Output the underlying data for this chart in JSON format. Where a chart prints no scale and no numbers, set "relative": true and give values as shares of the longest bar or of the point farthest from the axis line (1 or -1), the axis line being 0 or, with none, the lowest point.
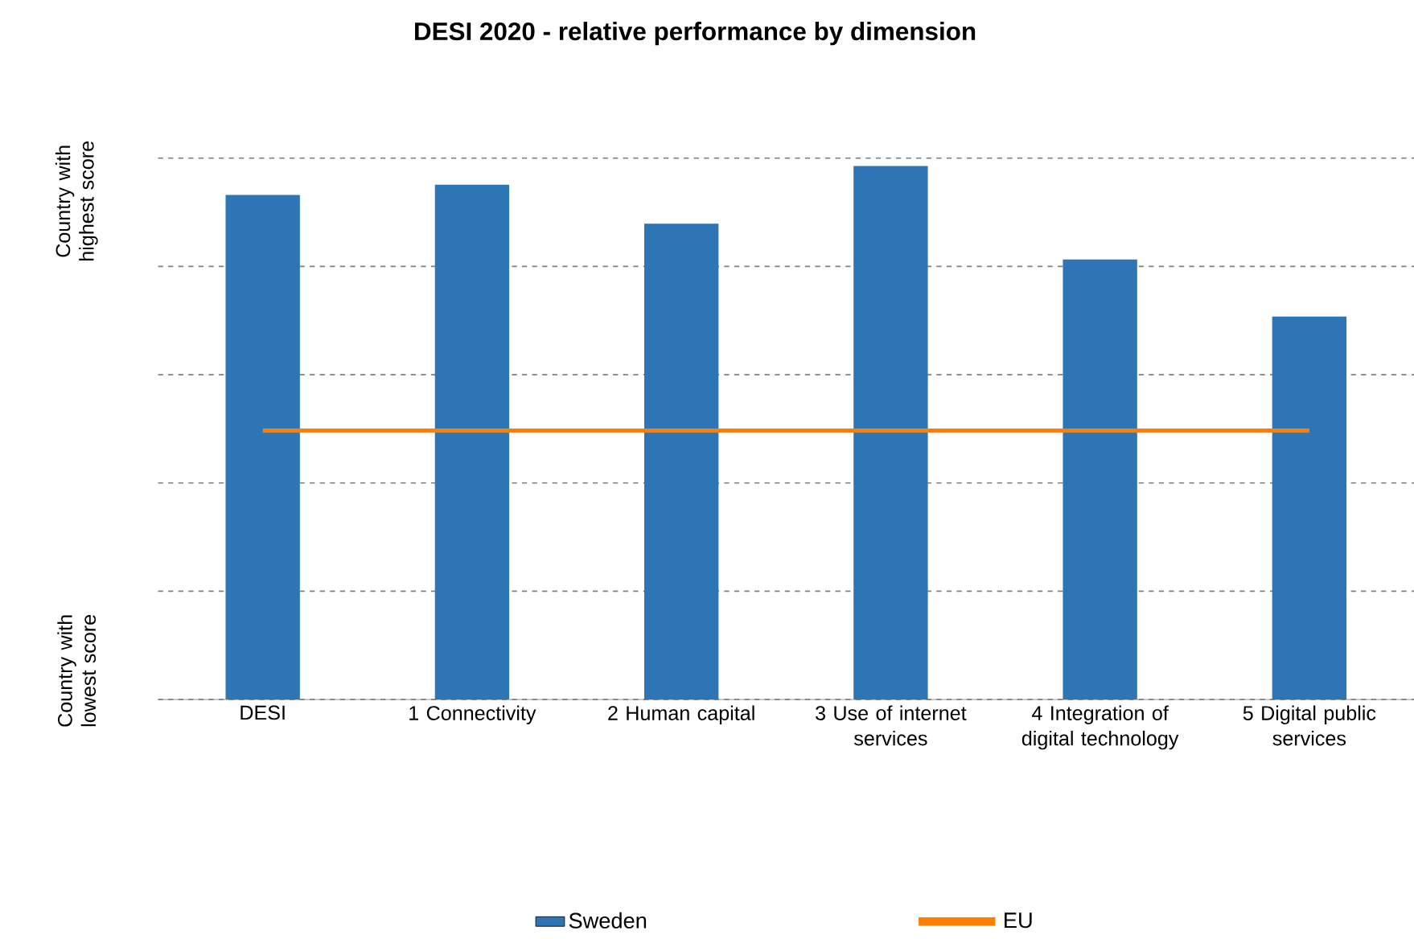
{
  "chart_data": {
    "type": "bar",
    "title": "DESI 2020 -  relative performance by dimension",
    "categories": [
      "DESI",
      "1 Connectivity",
      "2 Human capital",
      "3 Use of internet services",
      "4 Integration of digital technology",
      "5 Digital public services"
    ],
    "series": [
      {
        "name": "Sweden",
        "type": "bar",
        "color": "#2e75b6",
        "values": [
          0.946,
          0.965,
          0.892,
          1,
          0.825,
          0.718
        ]
      },
      {
        "name": "EU",
        "type": "line",
        "color": "#ff8000",
        "values": [
          0.504,
          0.504,
          0.504,
          0.504,
          0.504,
          0.504
        ]
      }
    ],
    "relative": true,
    "annotations": [
      "Country with  lowest score",
      "Country with highest score"
    ],
    "grid": "y",
    "legend": "bottom"
  }
}
